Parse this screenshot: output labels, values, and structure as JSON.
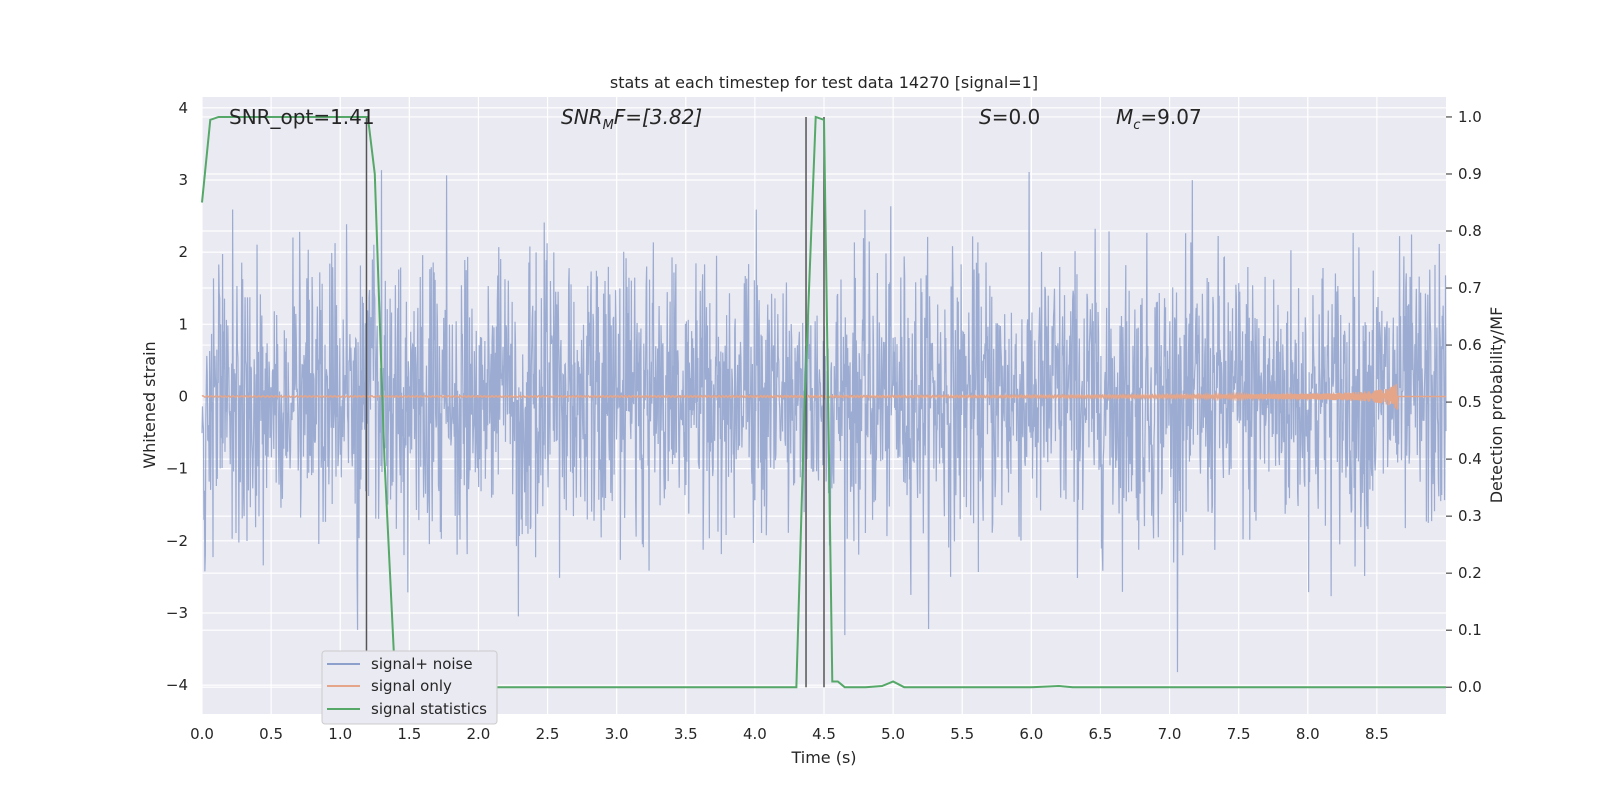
{
  "chart_data": {
    "type": "line",
    "title": "stats at each timestep for test data 14270 [signal=1]",
    "xlabel": "Time (s)",
    "ylabel_left": "Whitened strain",
    "ylabel_right": "Detection probability/MF",
    "xlim": [
      0,
      9.0
    ],
    "ylim_left": [
      -4.4,
      4.15
    ],
    "ylim_right": [
      -0.047,
      1.035
    ],
    "x_ticks": [
      "0.0",
      "0.5",
      "1.0",
      "1.5",
      "2.0",
      "2.5",
      "3.0",
      "3.5",
      "4.0",
      "4.5",
      "5.0",
      "5.5",
      "6.0",
      "6.5",
      "7.0",
      "7.5",
      "8.0",
      "8.5"
    ],
    "y_left_ticks": [
      "−4",
      "−3",
      "−2",
      "−1",
      "0",
      "1",
      "2",
      "3",
      "4"
    ],
    "y_right_ticks": [
      "0.0",
      "0.1",
      "0.2",
      "0.3",
      "0.4",
      "0.5",
      "0.6",
      "0.7",
      "0.8",
      "0.9",
      "1.0"
    ],
    "annotations": {
      "snr_opt": "SNR_opt=1.41",
      "snr_mf_base": "SNR",
      "snr_mf_sub": "M",
      "snr_mf_rest": "F=[3.82]",
      "s_label": "S",
      "s_rest": "=0.0",
      "mc_base": "M",
      "mc_sub": "c",
      "mc_rest": "=9.07"
    },
    "legend": {
      "placement": "lower-left",
      "entries": [
        "signal+ noise",
        "signal only",
        "signal statistics"
      ]
    },
    "colors": {
      "noise": "#8da0cb",
      "signal": "#e5a589",
      "stats": "#55a868",
      "marker": "#555555",
      "axes_bg": "#eaeaf2",
      "grid": "#ffffff"
    },
    "series": [
      {
        "name": "signal+ noise",
        "axis": "left",
        "description_values": {
          "time_range": [
            0,
            9.0
          ],
          "typical_amplitude": [
            -2.0,
            2.2
          ],
          "max": 3.8,
          "min": -4.0
        }
      },
      {
        "name": "signal only",
        "axis": "left",
        "chirp_end_time": 8.65,
        "max_amplitude": 0.2
      },
      {
        "name": "signal statistics",
        "axis": "right",
        "x": [
          0.0,
          0.06,
          0.12,
          0.5,
          1.0,
          1.2,
          1.25,
          1.32,
          1.4,
          2.0,
          3.0,
          4.0,
          4.3,
          4.36,
          4.44,
          4.5,
          4.56,
          4.6,
          4.65,
          4.8,
          4.92,
          5.0,
          5.08,
          5.2,
          6.0,
          6.2,
          6.3,
          7.0,
          8.0,
          9.0
        ],
        "y": [
          0.85,
          0.995,
          1.0,
          1.0,
          1.0,
          1.0,
          0.9,
          0.4,
          0.0,
          0.0,
          0.0,
          0.0,
          0.0,
          0.5,
          1.0,
          0.995,
          0.01,
          0.01,
          0.0,
          0.0,
          0.002,
          0.01,
          0.0,
          0.0,
          0.0,
          0.002,
          0.0,
          0.0,
          0.0,
          0.0
        ]
      }
    ],
    "vertical_markers": [
      {
        "x": 1.19,
        "y_range_right": [
          0.0,
          1.0
        ]
      },
      {
        "x": 4.37,
        "y_range_right": [
          0.0,
          1.0
        ]
      },
      {
        "x": 4.5,
        "y_range_right": [
          0.0,
          1.0
        ]
      }
    ]
  }
}
